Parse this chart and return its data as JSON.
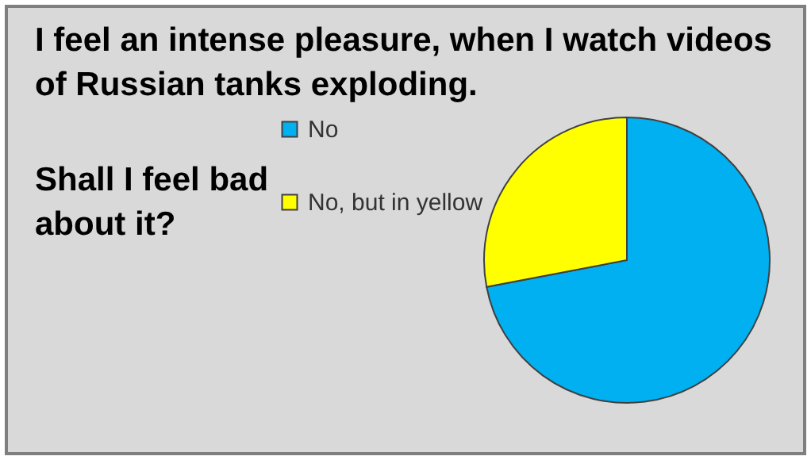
{
  "chart_data": {
    "type": "pie",
    "title": "I feel an intense pleasure, when I watch videos of Russian tanks exploding.",
    "subtitle": "Shall I feel bad about it?",
    "categories": [
      "No",
      "No, but in yellow"
    ],
    "values": [
      72,
      28
    ],
    "colors": [
      "#00b0f0",
      "#ffff00"
    ],
    "legend": "left"
  }
}
